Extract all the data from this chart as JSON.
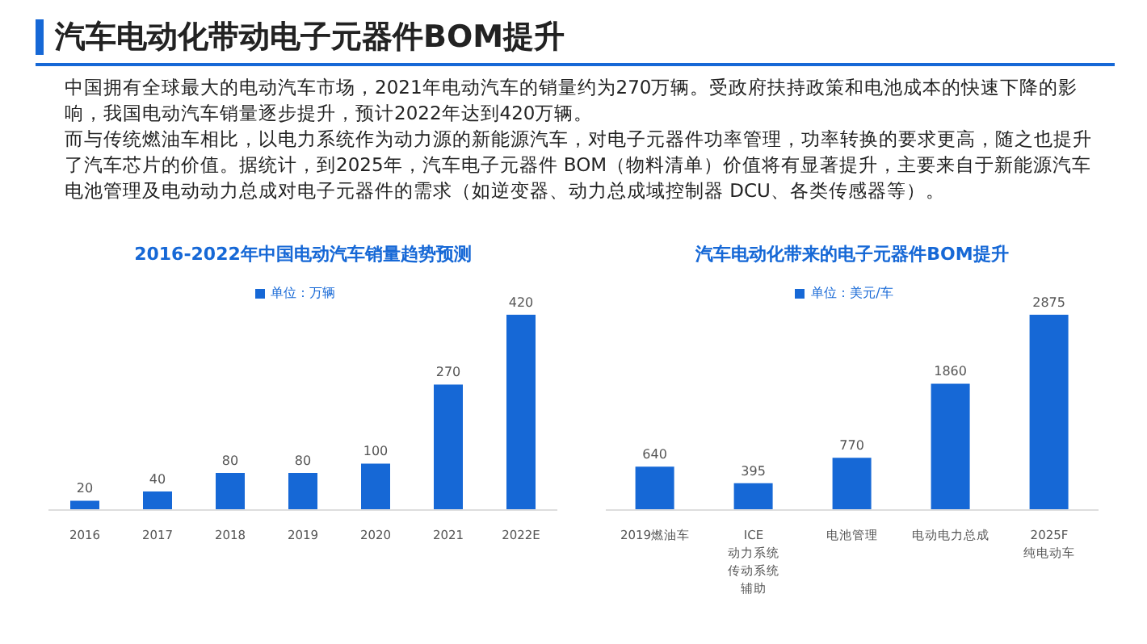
{
  "chart_data": [
    {
      "type": "other",
      "title": "汽车电动化带动电子元器件BOM提升",
      "annotations": [
        "中国拥有全球最大的电动汽车市场，2021年电动汽车的销量约为270万辆。受政府扶持政策和电池成本的快速下降的影响，我国电动汽车销量逐步提升，预计2022年达到420万辆。",
        "而与传统燃油车相比，以电力系统作为动力源的新能源汽车，对电子元器件功率管理，功率转换的要求更高，随之也提升了汽车芯片的价值。据统计，到2025年，汽车电子元器件 BOM（物料清单）价值将有显著提升，主要来自于新能源汽车电池管理及电动动力总成对电子元器件的需求（如逆变器、动力总成域控制器 DCU、各类传感器等）。"
      ]
    },
    {
      "type": "bar",
      "title": "2016-2022年中国电动汽车销量趋势预测",
      "categories": [
        "2016",
        "2017",
        "2018",
        "2019",
        "2020",
        "2021",
        "2022E"
      ],
      "legend": "top",
      "data_labels": true,
      "series": [
        {
          "name": "单位：万辆",
          "color": "#1668d6",
          "values": [
            20,
            40,
            80,
            80,
            100,
            270,
            420
          ]
        }
      ]
    },
    {
      "type": "bar",
      "title": "汽车电动化带来的电子元器件BOM提升",
      "categories": [
        "2019燃油车",
        "ICE 动力系统传动系统辅助",
        "电池管理",
        "电动电力总成",
        "2025F 纯电动车"
      ],
      "legend": "top",
      "data_labels": true,
      "series": [
        {
          "name": "单位：美元/车",
          "color": "#1668d6",
          "values": [
            640,
            395,
            770,
            1860,
            2875
          ]
        }
      ]
    }
  ]
}
